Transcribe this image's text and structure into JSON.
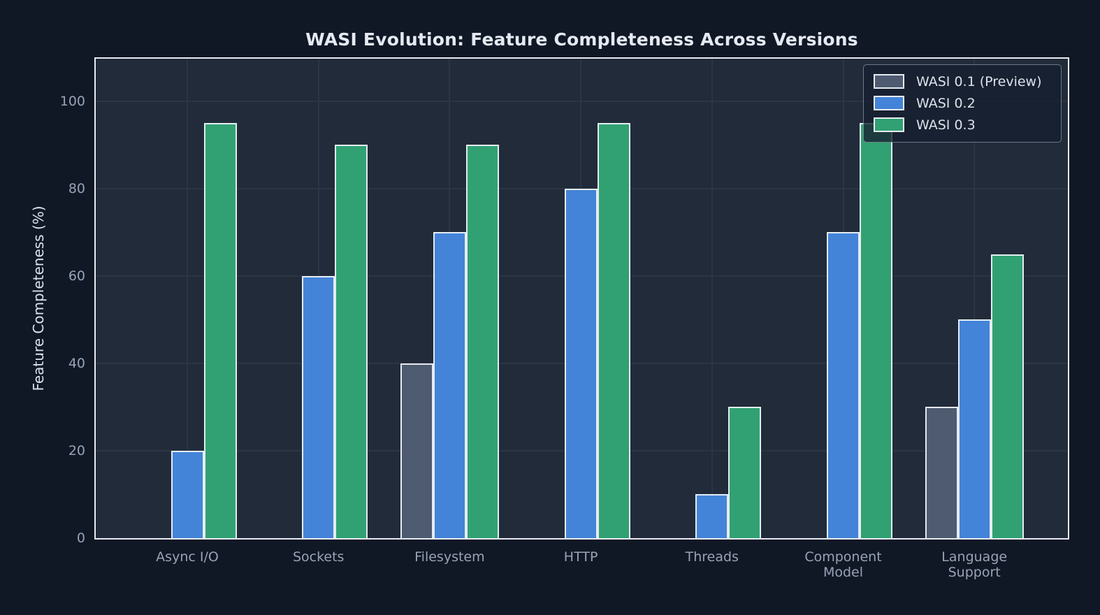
{
  "chart_data": {
    "type": "bar",
    "title": "WASI Evolution: Feature Completeness Across Versions",
    "xlabel": "",
    "ylabel": "Feature Completeness (%)",
    "ylim": [
      0,
      110
    ],
    "yticks": [
      0,
      20,
      40,
      60,
      80,
      100
    ],
    "grid": true,
    "legend_position": "upper right",
    "categories": [
      "Async I/O",
      "Sockets",
      "Filesystem",
      "HTTP",
      "Threads",
      "Component Model",
      "Language Support"
    ],
    "series": [
      {
        "name": "WASI 0.1 (Preview)",
        "color": "#4e5b70",
        "values": [
          0,
          0,
          40,
          0,
          0,
          0,
          30
        ]
      },
      {
        "name": "WASI 0.2",
        "color": "#4384d8",
        "values": [
          20,
          60,
          70,
          80,
          10,
          70,
          50
        ]
      },
      {
        "name": "WASI 0.3",
        "color": "#31a173",
        "values": [
          95,
          90,
          90,
          95,
          30,
          95,
          65
        ]
      }
    ]
  },
  "colors": {
    "figure_background": "#101826",
    "plot_background": "#212b3a",
    "gridline": "#2b3544",
    "axis_spine": "#e8ebf1",
    "tick_label": "#99a3b5",
    "axis_label": "#dde3ec",
    "title": "#e5eaf2",
    "bar_edge": "#eef1f6"
  }
}
